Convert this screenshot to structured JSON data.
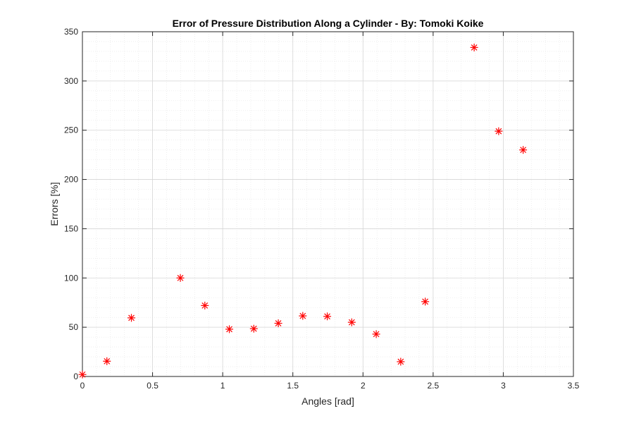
{
  "chart_data": {
    "type": "scatter",
    "title": "Error of Pressure Distribution Along a Cylinder - By: Tomoki Koike",
    "xlabel": "Angles [rad]",
    "ylabel": "Errors [%]",
    "xlim": [
      0,
      3.5
    ],
    "ylim": [
      0,
      350
    ],
    "xticks": [
      0,
      0.5,
      1,
      1.5,
      2,
      2.5,
      3,
      3.5
    ],
    "xtick_labels": [
      "0",
      "0.5",
      "1",
      "1.5",
      "2",
      "2.5",
      "3",
      "3.5"
    ],
    "yticks": [
      0,
      50,
      100,
      150,
      200,
      250,
      300,
      350
    ],
    "ytick_labels": [
      "0",
      "50",
      "100",
      "150",
      "200",
      "250",
      "300",
      "350"
    ],
    "grid": true,
    "minor_grid": true,
    "marker": "asterisk",
    "marker_color": "#ff0000",
    "x": [
      0,
      0.1745,
      0.3491,
      0.6981,
      0.8727,
      1.0472,
      1.2217,
      1.3963,
      1.5708,
      1.7453,
      1.9199,
      2.0944,
      2.2689,
      2.4435,
      2.7925,
      2.9671,
      3.1416
    ],
    "y": [
      2,
      15.5,
      59.5,
      100,
      72,
      48,
      48.5,
      54,
      61.5,
      61,
      55,
      43,
      15,
      76,
      334,
      249,
      230
    ]
  }
}
